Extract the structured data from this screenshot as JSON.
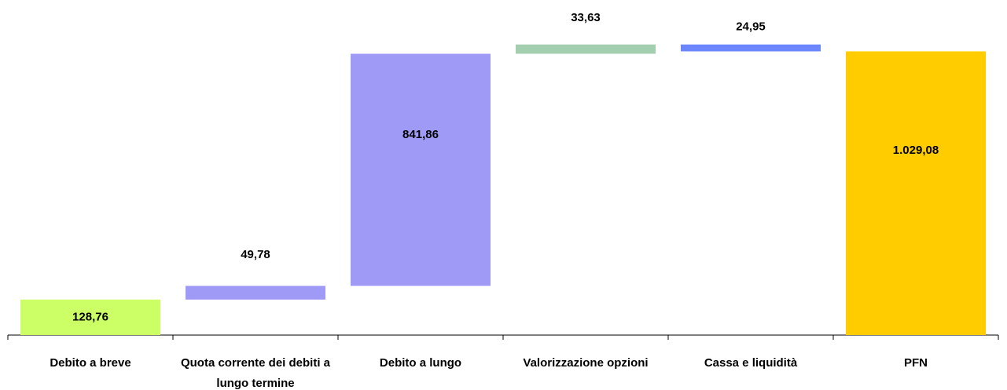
{
  "chart_data": {
    "type": "waterfall",
    "categories": [
      "Debito a breve",
      "Quota corrente dei debiti a lungo termine",
      "Debito a lungo",
      "Valorizzazione opzioni",
      "Cassa e liquidità",
      "PFN"
    ],
    "values": [
      128.76,
      49.78,
      841.86,
      33.63,
      -24.95,
      1029.08
    ],
    "value_labels": [
      "128,76",
      "49,78",
      "841,86",
      "33,63",
      "24,95",
      "1.029,08"
    ],
    "is_total": [
      false,
      false,
      false,
      false,
      false,
      true
    ],
    "colors": [
      "#ccff66",
      "#a09af7",
      "#a09af7",
      "#a3ceb0",
      "#6b86ff",
      "#ffcc00"
    ],
    "ylim": [
      0,
      1130
    ]
  }
}
